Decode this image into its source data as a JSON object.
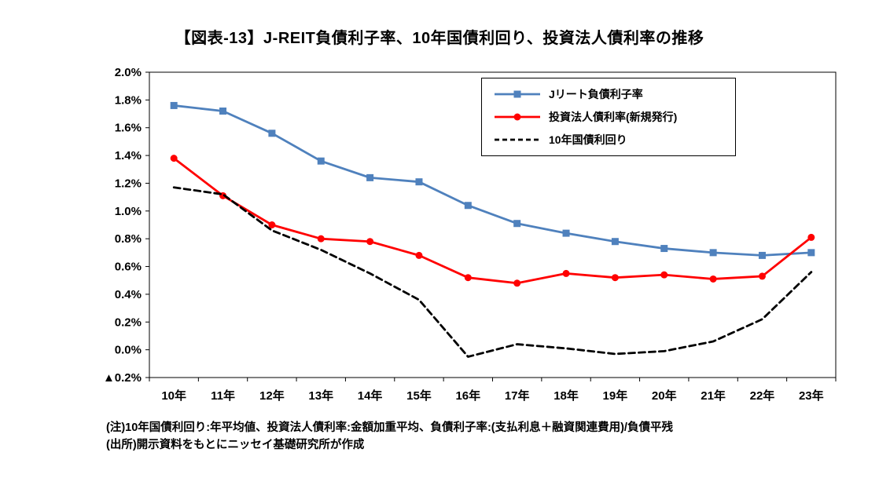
{
  "title": "【図表-13】J-REIT負債利子率、10年国債利回り、投資法人債利率の推移",
  "notes": [
    "(注)10年国債利回り:年平均値、投資法人債利率:金額加重平均、負債利子率:(支払利息＋融資関連費用)/負債平残",
    "(出所)開示資料をもとにニッセイ基礎研究所が作成"
  ],
  "chart_data": {
    "type": "line",
    "title": "【図表-13】J-REIT負債利子率、10年国債利回り、投資法人債利率の推移",
    "categories": [
      "10年",
      "11年",
      "12年",
      "13年",
      "14年",
      "15年",
      "16年",
      "17年",
      "18年",
      "19年",
      "20年",
      "21年",
      "22年",
      "23年"
    ],
    "series": [
      {
        "name": "Jリート負債利子率",
        "color": "#4F81BD",
        "marker": "square",
        "dash": null,
        "values": [
          1.76,
          1.72,
          1.56,
          1.36,
          1.24,
          1.21,
          1.04,
          0.91,
          0.84,
          0.78,
          0.73,
          0.7,
          0.68,
          0.7
        ]
      },
      {
        "name": "投資法人債利率(新規発行)",
        "color": "#FF0000",
        "marker": "circle",
        "dash": null,
        "values": [
          1.38,
          1.11,
          0.9,
          0.8,
          0.78,
          0.68,
          0.52,
          0.48,
          0.55,
          0.52,
          0.54,
          0.51,
          0.53,
          0.81
        ]
      },
      {
        "name": "10年国債利回り",
        "color": "#000000",
        "marker": "none",
        "dash": "8 5",
        "values": [
          1.17,
          1.12,
          0.86,
          0.72,
          0.55,
          0.36,
          -0.05,
          0.04,
          0.01,
          -0.03,
          -0.01,
          0.06,
          0.22,
          0.56
        ]
      }
    ],
    "ylim": [
      -0.2,
      2.0
    ],
    "ytick_step": 0.2,
    "ytick_labels": [
      "▲0.2%",
      "0.0%",
      "0.2%",
      "0.4%",
      "0.6%",
      "0.8%",
      "1.0%",
      "1.2%",
      "1.4%",
      "1.6%",
      "1.8%",
      "2.0%"
    ],
    "xlabel": "",
    "ylabel": "",
    "grid": false,
    "legend_position": "top-right-inside"
  }
}
